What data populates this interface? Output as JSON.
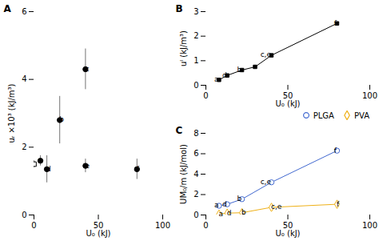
{
  "chart_data": [
    {
      "type": "scatter",
      "title": "A",
      "xlabel": "U₀ (kJ)",
      "ylabel": "uᵣ ×10³ (kJ/m³)",
      "xlim": [
        0,
        100
      ],
      "ylim": [
        0.0,
        6.0
      ],
      "xticks": [
        0,
        50,
        100
      ],
      "yticks": [
        0.0,
        2.0,
        4.0,
        6.0
      ],
      "series": [
        {
          "marker": "square",
          "x": [
            0
          ],
          "values": [
            1.5
          ],
          "errors": [
            0.1
          ]
        },
        {
          "marker": "circle",
          "x": [
            5,
            10,
            20,
            40,
            40,
            80
          ],
          "values": [
            1.6,
            1.35,
            2.8,
            4.3,
            1.45,
            1.35
          ],
          "errors": [
            0.15,
            0.4,
            0.7,
            0.6,
            0.2,
            0.3
          ],
          "labels": [
            "a",
            "d",
            "b",
            "c",
            "e",
            "f"
          ]
        }
      ]
    },
    {
      "type": "line",
      "title": "B",
      "xlabel": "U₀ (kJ)",
      "ylabel": "uᴵ (kJ/m³)",
      "xlim": [
        0,
        100
      ],
      "ylim": [
        0.0,
        3.0
      ],
      "xticks": [
        0,
        50,
        100
      ],
      "yticks": [
        0.0,
        1.0,
        2.0,
        3.0
      ],
      "series": [
        {
          "marker": "square",
          "x": [
            8,
            13,
            22,
            30,
            40,
            80
          ],
          "values": [
            0.22,
            0.4,
            0.62,
            0.75,
            1.22,
            2.52
          ],
          "labels": [
            "a",
            "d",
            "b",
            null,
            "c,e",
            "f"
          ]
        }
      ]
    },
    {
      "type": "line",
      "title": "C",
      "xlabel": "U₀ (kJ)",
      "ylabel": "UM₀/m (kJ/mol)",
      "xlim": [
        0,
        100
      ],
      "ylim": [
        0.0,
        8.0
      ],
      "xticks": [
        0,
        50,
        100
      ],
      "yticks": [
        0.0,
        2.0,
        4.0,
        6.0,
        8.0
      ],
      "legend": "upper right",
      "series": [
        {
          "name": "PLGA",
          "marker": "circle",
          "x": [
            8,
            13,
            22,
            40,
            80
          ],
          "values": [
            0.9,
            1.05,
            1.55,
            3.2,
            6.3
          ],
          "labels": [
            "a",
            "d",
            "b",
            "c,e",
            "f"
          ]
        },
        {
          "name": "PVA",
          "marker": "diamond",
          "x": [
            8,
            13,
            22,
            40,
            80
          ],
          "values": [
            0.08,
            0.18,
            0.22,
            0.75,
            1.05
          ],
          "labels": [
            "a",
            "d",
            "b",
            "c,e",
            "f"
          ]
        }
      ]
    }
  ]
}
